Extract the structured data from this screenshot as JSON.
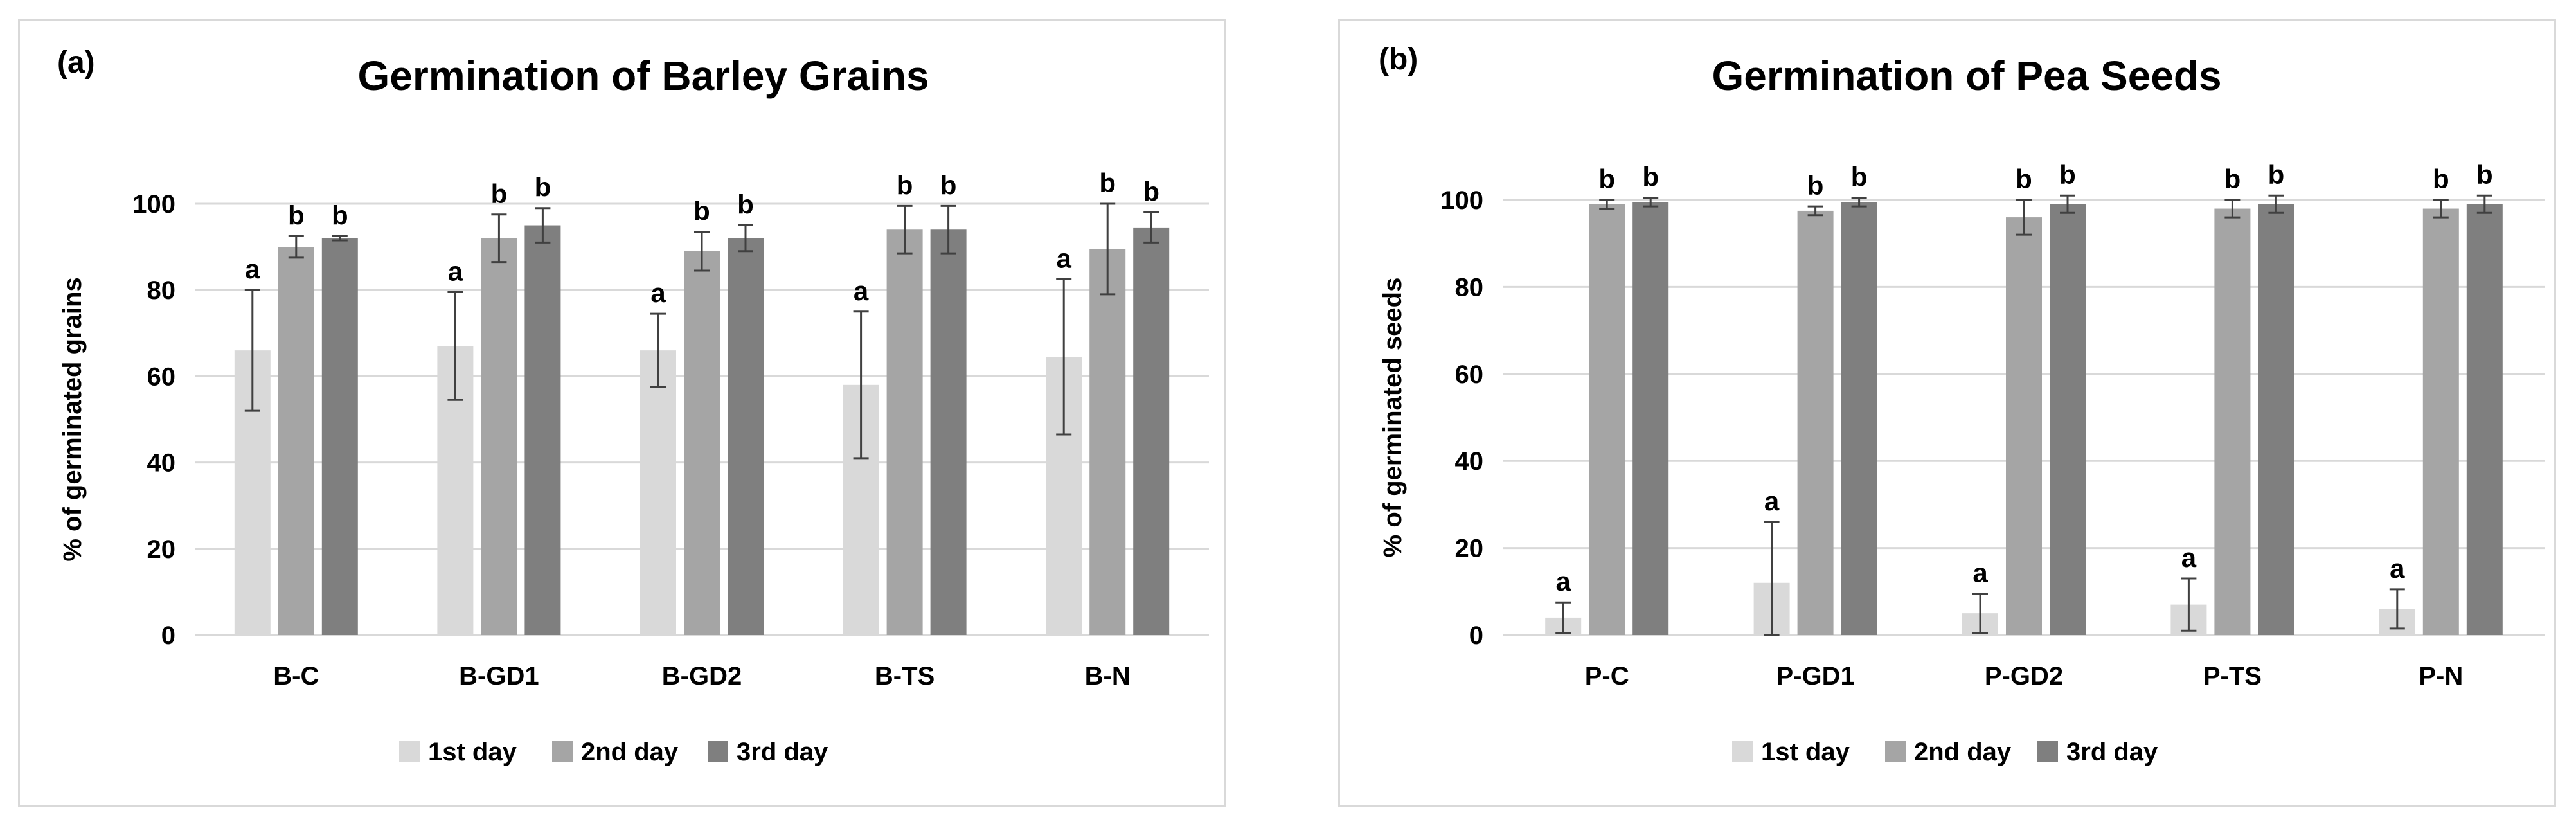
{
  "colors": {
    "day1": "#d9d9d9",
    "day2": "#a5a5a5",
    "day3": "#7f7f7f",
    "grid": "#d9d9d9",
    "error": "#404040"
  },
  "chart_data": [
    {
      "type": "bar",
      "panel_label": "(a)",
      "title": "Germination of Barley Grains",
      "xlabel": "",
      "ylabel": "% of germinated grains",
      "ylim": [
        0,
        100
      ],
      "yticks": [
        0,
        20,
        40,
        60,
        80,
        100
      ],
      "grid": true,
      "legend": "bottom",
      "categories": [
        "B-C",
        "B-GD1",
        "B-GD2",
        "B-TS",
        "B-N"
      ],
      "series": [
        {
          "name": "1st day",
          "values": [
            66,
            67,
            66,
            58,
            64.5
          ],
          "errors": [
            14,
            12.5,
            8.5,
            17,
            18
          ],
          "labels": [
            "a",
            "a",
            "a",
            "a",
            "a"
          ]
        },
        {
          "name": "2nd day",
          "values": [
            90,
            92,
            89,
            94,
            89.5
          ],
          "errors": [
            2.5,
            5.5,
            4.5,
            5.5,
            10.5
          ],
          "labels": [
            "b",
            "b",
            "b",
            "b",
            "b"
          ]
        },
        {
          "name": "3rd day",
          "values": [
            92,
            95,
            92,
            94,
            94.5
          ],
          "errors": [
            0.5,
            4,
            3,
            5.5,
            3.5
          ],
          "labels": [
            "b",
            "b",
            "b",
            "b",
            "b"
          ]
        }
      ]
    },
    {
      "type": "bar",
      "panel_label": "(b)",
      "title": "Germination of Pea Seeds",
      "xlabel": "",
      "ylabel": "% of germinated seeds",
      "ylim": [
        0,
        100
      ],
      "yticks": [
        0,
        20,
        40,
        60,
        80,
        100
      ],
      "grid": true,
      "legend": "bottom",
      "categories": [
        "P-C",
        "P-GD1",
        "P-GD2",
        "P-TS",
        "P-N"
      ],
      "series": [
        {
          "name": "1st day",
          "values": [
            4,
            12,
            5,
            7,
            6
          ],
          "errors": [
            3.5,
            14,
            4.5,
            6,
            4.5
          ],
          "labels": [
            "a",
            "a",
            "a",
            "a",
            "a"
          ]
        },
        {
          "name": "2nd day",
          "values": [
            99,
            97.5,
            96,
            98,
            98
          ],
          "errors": [
            1,
            1,
            4,
            2,
            2
          ],
          "labels": [
            "b",
            "b",
            "b",
            "b",
            "b"
          ]
        },
        {
          "name": "3rd day",
          "values": [
            99.5,
            99.5,
            99,
            99,
            99
          ],
          "errors": [
            1,
            1,
            2,
            2,
            2
          ],
          "labels": [
            "b",
            "b",
            "b",
            "b",
            "b"
          ]
        }
      ]
    }
  ]
}
